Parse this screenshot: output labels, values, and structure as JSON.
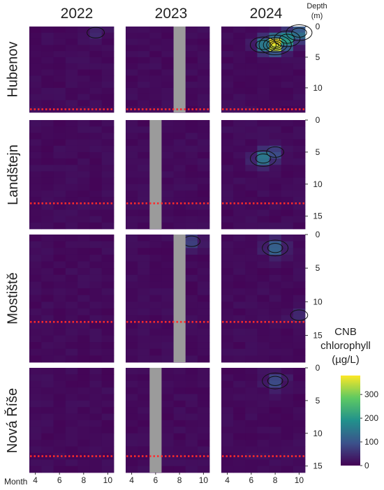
{
  "chart_data": {
    "type": "heatmap",
    "title": "",
    "years": [
      "2022",
      "2023",
      "2024"
    ],
    "lakes": [
      {
        "name": "Hubenov",
        "max_depth": 14,
        "depth_ticks": [
          0,
          5,
          10
        ],
        "red_line_depth": 13.5
      },
      {
        "name": "Landštejn",
        "max_depth": 17,
        "depth_ticks": [
          0,
          5,
          10,
          15
        ],
        "red_line_depth": 13
      },
      {
        "name": "Mostiště",
        "max_depth": 19,
        "depth_ticks": [
          0,
          5,
          10,
          15
        ],
        "red_line_depth": 13
      },
      {
        "name": "Nová Říše",
        "max_depth": 16,
        "depth_ticks": [
          0,
          5,
          10,
          15
        ],
        "red_line_depth": 13.5
      }
    ],
    "x_axis": {
      "label": "Month",
      "min": 3.5,
      "max": 10.5,
      "ticks": [
        4,
        6,
        8,
        10
      ]
    },
    "y_axis": {
      "label": "Depth\n(m)",
      "reversed": true
    },
    "no_data_2023": [
      {
        "lake": "Hubenov",
        "month": 8
      },
      {
        "lake": "Landštejn",
        "month": 6
      },
      {
        "lake": "Mostiště",
        "month": 8
      },
      {
        "lake": "Nová Říše",
        "month": 6
      }
    ],
    "hotspots": [
      {
        "lake": "Hubenov",
        "year": "2024",
        "month": 8,
        "depth": 3,
        "value": 380
      },
      {
        "lake": "Hubenov",
        "year": "2024",
        "month": 9,
        "depth": 2,
        "value": 140
      },
      {
        "lake": "Hubenov",
        "year": "2024",
        "month": 7,
        "depth": 3,
        "value": 90
      },
      {
        "lake": "Hubenov",
        "year": "2024",
        "month": 10,
        "depth": 1,
        "value": 110
      },
      {
        "lake": "Hubenov",
        "year": "2022",
        "month": 9,
        "depth": 1,
        "value": 40
      },
      {
        "lake": "Landštejn",
        "year": "2024",
        "month": 7,
        "depth": 6,
        "value": 150
      },
      {
        "lake": "Landštejn",
        "year": "2024",
        "month": 8,
        "depth": 5,
        "value": 60
      },
      {
        "lake": "Mostiště",
        "year": "2024",
        "month": 8,
        "depth": 2,
        "value": 120
      },
      {
        "lake": "Mostiště",
        "year": "2024",
        "month": 10,
        "depth": 12,
        "value": 45
      },
      {
        "lake": "Mostiště",
        "year": "2023",
        "month": 9,
        "depth": 1,
        "value": 70
      },
      {
        "lake": "Nová Říše",
        "year": "2024",
        "month": 8,
        "depth": 2,
        "value": 90
      }
    ],
    "colorbar": {
      "title": "CNB\nchlorophyll\n(µg/L)",
      "ticks": [
        0,
        100,
        200,
        300
      ],
      "min": 0,
      "max": 380,
      "colormap": "viridis"
    }
  }
}
